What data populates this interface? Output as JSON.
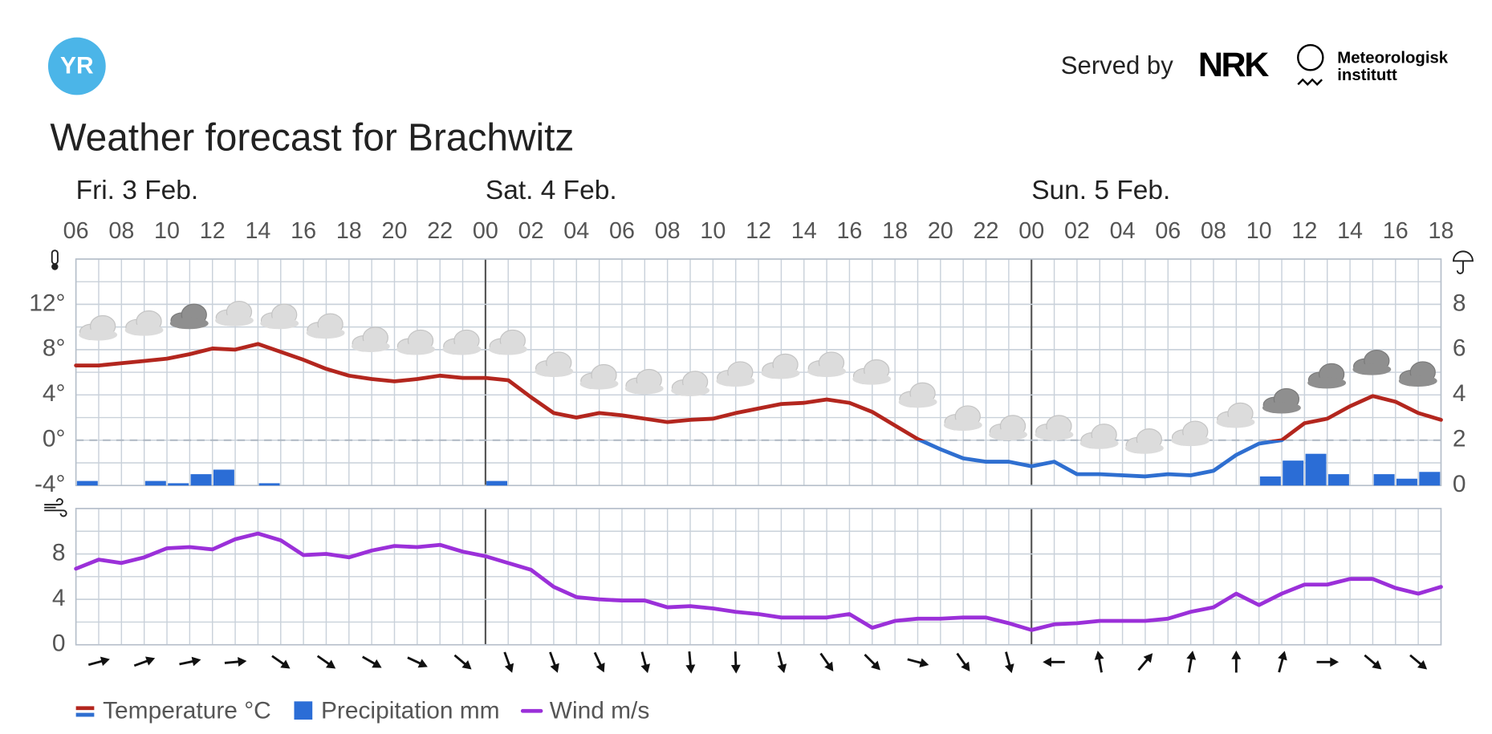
{
  "header": {
    "logo_text": "YR",
    "served_by": "Served by",
    "partner_1": "NRK",
    "partner_2_line_1": "Meteorologisk",
    "partner_2_line_2": "institutt",
    "title": "Weather forecast for Brachwitz"
  },
  "chart_data": [
    {
      "type": "line",
      "days": [
        "Fri. 3 Feb.",
        "Sat. 4 Feb.",
        "Sun. 5 Feb."
      ],
      "categories": [
        "06",
        null,
        "08",
        null,
        "10",
        null,
        "12",
        null,
        "14",
        null,
        "16",
        null,
        "18",
        null,
        "20",
        null,
        "22",
        null,
        "00",
        null,
        "02",
        null,
        "04",
        null,
        "06",
        null,
        "08",
        null,
        "10",
        null,
        "12",
        null,
        "14",
        null,
        "16",
        null,
        "18",
        null,
        "20",
        null,
        "22",
        null,
        "00",
        null,
        "02",
        null,
        "04",
        null,
        "06",
        null,
        "08",
        null,
        "10",
        null,
        "12",
        null,
        "14",
        null,
        "16",
        null,
        "18"
      ],
      "series": [
        {
          "name": "Temperature °C",
          "type": "line",
          "warm_color": "#b3261e",
          "cold_color": "#2f6fd0",
          "values": [
            6.6,
            6.6,
            6.8,
            7.0,
            7.2,
            7.6,
            8.1,
            8.0,
            8.5,
            7.8,
            7.1,
            6.3,
            5.7,
            5.4,
            5.2,
            5.4,
            5.7,
            5.5,
            5.5,
            5.3,
            3.8,
            2.4,
            2.0,
            2.4,
            2.2,
            1.9,
            1.6,
            1.8,
            1.9,
            2.4,
            2.8,
            3.2,
            3.3,
            3.6,
            3.3,
            2.5,
            1.3,
            0.1,
            -0.8,
            -1.6,
            -1.9,
            -1.9,
            -2.3,
            -1.9,
            -3.0,
            -3.0,
            -3.1,
            -3.2,
            -3.0,
            -3.1,
            -2.7,
            -1.3,
            -0.3,
            0,
            1.5,
            1.9,
            3.0,
            3.9,
            3.4,
            2.4,
            1.8
          ]
        },
        {
          "name": "Precipitation mm",
          "type": "bar",
          "axis": "y2",
          "color": "#2b6dd6",
          "values": [
            null,
            0.2,
            0,
            0,
            0.2,
            0.1,
            0.5,
            0.7,
            0,
            0.1,
            0,
            0,
            0,
            0,
            0,
            0,
            0,
            0,
            0,
            0.2,
            0,
            0,
            0,
            0,
            0,
            0,
            0,
            0,
            0,
            0,
            0,
            0,
            0,
            0,
            0,
            0,
            0,
            0,
            0,
            0,
            0,
            0,
            0,
            0,
            0,
            0,
            0,
            0,
            0,
            0,
            0,
            0,
            0,
            0.4,
            1.1,
            1.4,
            0.5,
            0,
            0.5,
            0.3,
            0.6
          ]
        }
      ],
      "ylim": [
        -4,
        16
      ],
      "yticks": [
        {
          "value": -4,
          "label": "-4°"
        },
        {
          "value": 0,
          "label": "0°"
        },
        {
          "value": 4,
          "label": "4°"
        },
        {
          "value": 8,
          "label": "8°"
        },
        {
          "value": 12,
          "label": "12°"
        }
      ],
      "y2lim": [
        0,
        10
      ],
      "y2ticks": [
        0,
        2,
        4,
        6,
        8
      ],
      "grid": true,
      "zero_line": "dashed"
    },
    {
      "type": "line",
      "series": [
        {
          "name": "Wind m/s",
          "type": "line",
          "color": "#9b30d9",
          "values": [
            6.7,
            7.5,
            7.2,
            7.7,
            8.5,
            8.6,
            8.4,
            9.3,
            9.8,
            9.2,
            7.9,
            8.0,
            7.7,
            8.3,
            8.7,
            8.6,
            8.8,
            8.2,
            7.8,
            7.2,
            6.6,
            5.1,
            4.2,
            4.0,
            3.9,
            3.9,
            3.3,
            3.4,
            3.2,
            2.9,
            2.7,
            2.4,
            2.4,
            2.4,
            2.7,
            1.5,
            2.1,
            2.3,
            2.3,
            2.4,
            2.4,
            1.9,
            1.3,
            1.8,
            1.9,
            2.1,
            2.1,
            2.1,
            2.3,
            2.9,
            3.3,
            4.5,
            3.5,
            4.5,
            5.3,
            5.3,
            5.8,
            5.8,
            5.0,
            4.5,
            5.1
          ]
        }
      ],
      "wind_direction": [
        null,
        -15,
        null,
        -20,
        null,
        -12,
        null,
        -5,
        null,
        35,
        null,
        35,
        null,
        30,
        null,
        25,
        null,
        40,
        null,
        70,
        null,
        70,
        null,
        65,
        null,
        75,
        null,
        85,
        null,
        88,
        null,
        75,
        null,
        55,
        null,
        45,
        null,
        15,
        null,
        55,
        null,
        75,
        null,
        180,
        null,
        -100,
        null,
        -50,
        null,
        -80,
        null,
        -90,
        null,
        -75,
        null,
        0,
        null,
        40,
        null,
        40,
        null
      ],
      "ylim": [
        0,
        12
      ],
      "yticks": [
        0,
        4,
        8
      ],
      "grid": true
    }
  ]
}
